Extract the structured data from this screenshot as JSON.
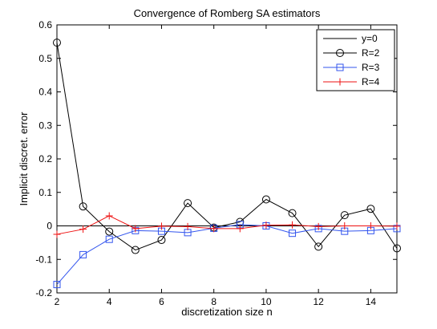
{
  "chart_data": {
    "type": "line",
    "title": "Convergence of Romberg SA estimators",
    "xlabel": "discretization size n",
    "ylabel": "Implicit discret. error",
    "xlim": [
      2,
      15
    ],
    "ylim": [
      -0.2,
      0.6
    ],
    "xticks": [
      2,
      4,
      6,
      8,
      10,
      12,
      14
    ],
    "yticks": [
      -0.2,
      -0.1,
      0,
      0.1,
      0.2,
      0.3,
      0.4,
      0.5,
      0.6
    ],
    "grid": false,
    "legend_position": "top-right",
    "x": [
      2,
      3,
      4,
      5,
      6,
      7,
      8,
      9,
      10,
      11,
      12,
      13,
      14,
      15
    ],
    "series": [
      {
        "name": "y=0",
        "color": "#000000",
        "marker": "none",
        "x": [
          2,
          15
        ],
        "values": [
          0,
          0
        ]
      },
      {
        "name": "R=2",
        "color": "#000000",
        "marker": "circle",
        "values": [
          0.547,
          0.058,
          -0.017,
          -0.072,
          -0.042,
          0.068,
          -0.005,
          0.012,
          0.079,
          0.038,
          -0.062,
          0.032,
          0.051,
          -0.067
        ]
      },
      {
        "name": "R=3",
        "color": "#3355ee",
        "marker": "square",
        "values": [
          -0.175,
          -0.086,
          -0.04,
          -0.014,
          -0.016,
          -0.02,
          -0.007,
          0.004,
          0.0,
          -0.022,
          -0.008,
          -0.016,
          -0.014,
          -0.008
        ]
      },
      {
        "name": "R=4",
        "color": "#ee1111",
        "marker": "plus",
        "values": [
          -0.025,
          -0.01,
          0.03,
          -0.008,
          -0.001,
          -0.002,
          -0.008,
          -0.008,
          0.002,
          0.003,
          -0.002,
          0.0,
          0.0,
          -0.001
        ]
      }
    ]
  }
}
